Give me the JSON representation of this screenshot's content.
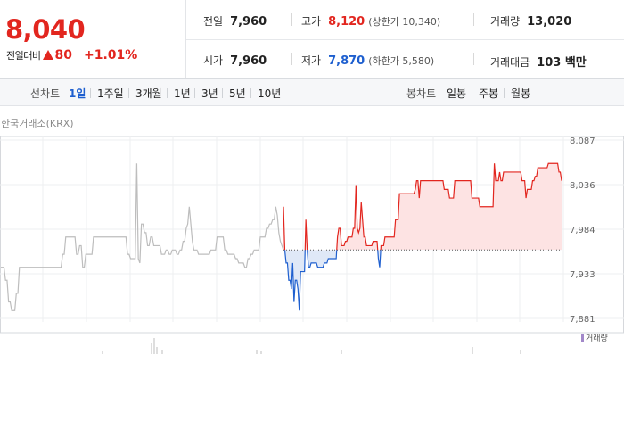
{
  "quote": {
    "price": "8,040",
    "diff_label": "전일대비",
    "diff_value": "80",
    "diff_rate": "+1.01%",
    "colors": {
      "up": "#e2261f",
      "down": "#1e5fcf"
    }
  },
  "stats": {
    "prev_close_label": "전일",
    "prev_close": "7,960",
    "open_label": "시가",
    "open": "7,960",
    "high_label": "고가",
    "high": "8,120",
    "upper_limit": "(상한가 10,340)",
    "low_label": "저가",
    "low": "7,870",
    "lower_limit": "(하한가 5,580)",
    "volume_label": "거래량",
    "volume": "13,020",
    "amount_label": "거래대금",
    "amount": "103 백만"
  },
  "toolbar": {
    "line_label": "선차트",
    "line_periods": [
      "1일",
      "1주일",
      "3개월",
      "1년",
      "3년",
      "5년",
      "10년"
    ],
    "active_period": "1일",
    "candle_label": "봉차트",
    "candle_periods": [
      "일봉",
      "주봉",
      "월봉"
    ]
  },
  "exchange": "한국거래소(KRX)",
  "chart_data": {
    "type": "line",
    "yticks": [
      "8,087",
      "8,036",
      "7,984",
      "7,933",
      "7,881"
    ],
    "ylim": [
      7881,
      8087
    ],
    "baseline": 7960,
    "grid": true,
    "volume_legend": "거래량",
    "series": [
      {
        "values": [
          7940,
          7940,
          7940,
          7925,
          7925,
          7900,
          7900,
          7890,
          7890,
          7890,
          7910,
          7910,
          7940,
          7940,
          7940,
          7940,
          7940,
          7940,
          7940,
          7940,
          7940,
          7940,
          7940,
          7940,
          7940,
          7940,
          7940,
          7940,
          7940,
          7940,
          7940,
          7940,
          7940,
          7940,
          7940,
          7940,
          7940,
          7940,
          7940,
          7940,
          7955,
          7955,
          7975,
          7975,
          7975,
          7975,
          7975,
          7975,
          7975,
          7955,
          7955,
          7965,
          7965,
          7940,
          7940,
          7955,
          7955,
          7955,
          7955,
          7955,
          7975,
          7975,
          7975,
          7975,
          7975,
          7975,
          7975,
          7975,
          7975,
          7975,
          7975,
          7975,
          7975,
          7975,
          7975,
          7975,
          7975,
          7975,
          7975,
          7975,
          7975,
          7975,
          7955,
          7955,
          7950,
          7950,
          7950,
          7950,
          8060,
          7950,
          7945,
          7990,
          7990,
          7980,
          7980,
          7965,
          7965,
          7975,
          7975,
          7965,
          7965,
          7965,
          7965,
          7965,
          7955,
          7955,
          7955,
          7960,
          7960,
          7955,
          7955,
          7960,
          7960,
          7960,
          7955,
          7955,
          7960,
          7960,
          7970,
          7970,
          7985,
          7990,
          8010,
          7990,
          7970,
          7960,
          7960,
          7960,
          7955,
          7955,
          7955,
          7955,
          7955,
          7955,
          7955,
          7955,
          7960,
          7960,
          7960,
          7960,
          7975,
          7975,
          7975,
          7975,
          7975,
          7960,
          7960,
          7955,
          7955,
          7955,
          7955,
          7955,
          7950,
          7950,
          7945,
          7945,
          7945,
          7945,
          7940,
          7940,
          7950,
          7950,
          7955,
          7955,
          7960,
          7960,
          7960,
          7960,
          7975,
          7975,
          7975,
          7975,
          7985,
          7985,
          7990,
          7990,
          7995,
          7995,
          8010,
          8000,
          7980,
          7970,
          7965,
          7960
        ]
      },
      {
        "values": [
          8010,
          7960,
          7945,
          7945,
          7925,
          7925,
          7915,
          7945,
          7900,
          7925,
          7925,
          7915,
          7890,
          7935,
          7935,
          7935,
          7935,
          7995,
          7960,
          7940,
          7940,
          7945,
          7945,
          7945,
          7945,
          7945,
          7940,
          7940,
          7940,
          7940,
          7940,
          7945,
          7945,
          7945,
          7950,
          7950,
          7950,
          7950,
          7950,
          7950,
          7950,
          7975,
          7985,
          7985,
          7965,
          7965,
          7965,
          7970,
          7970,
          7975,
          7975,
          7975,
          7975,
          7985,
          7985,
          8035,
          7985,
          7980,
          7985,
          8015,
          7995,
          7975,
          7975,
          7965,
          7965,
          7965,
          7965,
          7965,
          7970,
          7970,
          7970,
          7970,
          7950,
          7940,
          7965,
          7965,
          7965,
          7975,
          7975,
          7975,
          7975,
          7975,
          7975,
          7975,
          7975,
          7995,
          7995,
          7995,
          8025,
          8025,
          8025,
          8025,
          8025,
          8025,
          8025,
          8025,
          8025,
          8025,
          8025,
          8025,
          8030,
          8040,
          8040,
          8020,
          8040,
          8040,
          8040,
          8040,
          8040,
          8040,
          8040,
          8040,
          8040,
          8040,
          8040,
          8040,
          8040,
          8040,
          8040,
          8040,
          8040,
          8040,
          8030,
          8030,
          8030,
          8030,
          8020,
          8020,
          8020,
          8020,
          8040,
          8040,
          8040,
          8040,
          8040,
          8040,
          8040,
          8040,
          8040,
          8040,
          8040,
          8040,
          8040,
          8020,
          8020,
          8020,
          8020,
          8020,
          8020,
          8010,
          8010,
          8010,
          8010,
          8010,
          8010,
          8010,
          8010,
          8010,
          8010,
          8010,
          8060,
          8040,
          8040,
          8040,
          8050,
          8040,
          8040,
          8050,
          8050,
          8050,
          8050,
          8050,
          8050,
          8050,
          8050,
          8050,
          8050,
          8050,
          8050,
          8050,
          8050,
          8040,
          8040,
          8040,
          8020,
          8030,
          8030,
          8030,
          8030,
          8040,
          8040,
          8045,
          8045,
          8055,
          8055,
          8055,
          8055,
          8055,
          8055,
          8055,
          8055,
          8060,
          8060,
          8060,
          8060,
          8060,
          8060,
          8060,
          8060,
          8050,
          8050,
          8040
        ]
      }
    ]
  }
}
